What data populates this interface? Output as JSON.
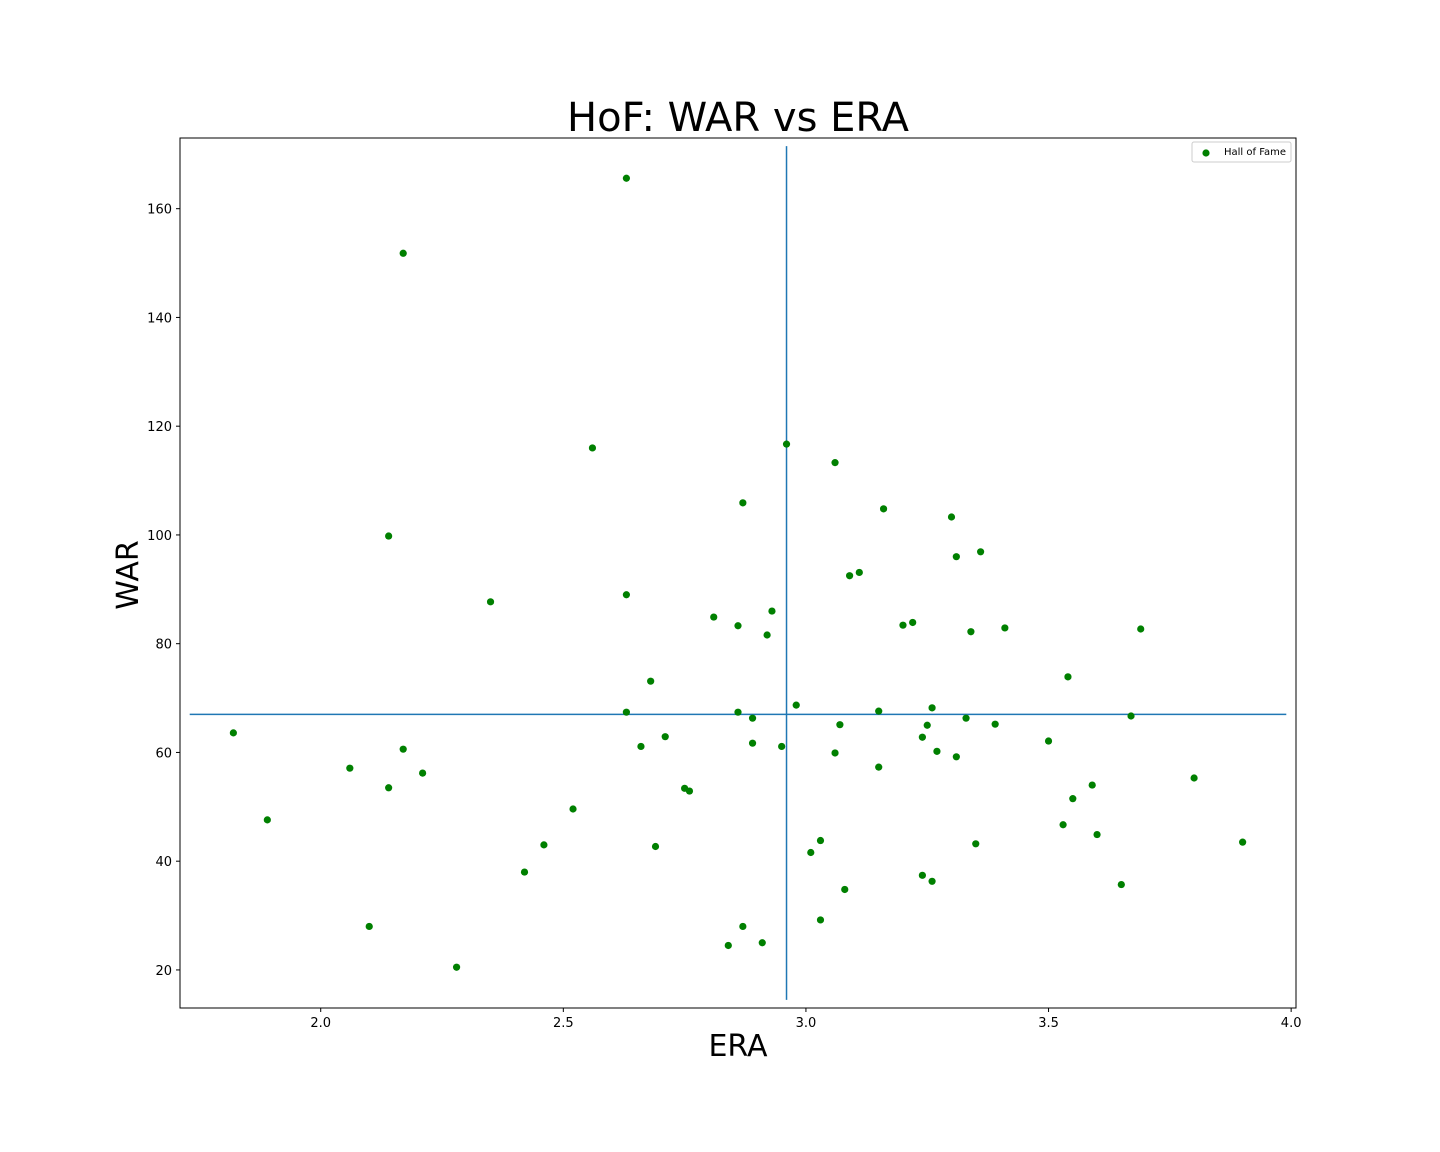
{
  "chart_data": {
    "type": "scatter",
    "title": "HoF: WAR vs ERA",
    "xlabel": "ERA",
    "ylabel": "WAR",
    "xlim": [
      1.71,
      4.01
    ],
    "ylim": [
      13.0,
      173.0
    ],
    "x_ticks": [
      "2.0",
      "2.5",
      "3.0",
      "3.5",
      "4.0"
    ],
    "y_ticks": [
      "20",
      "40",
      "60",
      "80",
      "100",
      "120",
      "140",
      "160"
    ],
    "grid": false,
    "legend": {
      "placement": "top-right",
      "entries": [
        "Hall of Fame"
      ]
    },
    "reference_lines": {
      "vertical_x": 2.96,
      "horizontal_y": 67.0
    },
    "colors": {
      "points": "#008000",
      "reference_lines": "#1f77b4"
    },
    "series": [
      {
        "name": "Hall of Fame",
        "points": [
          [
            2.63,
            165.6
          ],
          [
            2.17,
            151.8
          ],
          [
            2.56,
            116.0
          ],
          [
            2.96,
            116.7
          ],
          [
            3.06,
            113.3
          ],
          [
            2.87,
            105.9
          ],
          [
            3.16,
            104.8
          ],
          [
            3.3,
            103.3
          ],
          [
            2.14,
            99.8
          ],
          [
            3.31,
            96.0
          ],
          [
            3.36,
            96.9
          ],
          [
            3.09,
            92.5
          ],
          [
            3.11,
            93.1
          ],
          [
            2.35,
            87.7
          ],
          [
            2.63,
            89.0
          ],
          [
            2.81,
            84.9
          ],
          [
            2.86,
            83.3
          ],
          [
            2.93,
            86.0
          ],
          [
            2.92,
            81.6
          ],
          [
            3.2,
            83.4
          ],
          [
            3.22,
            83.9
          ],
          [
            3.34,
            82.2
          ],
          [
            3.41,
            82.9
          ],
          [
            3.69,
            82.7
          ],
          [
            2.68,
            73.1
          ],
          [
            3.54,
            73.9
          ],
          [
            2.63,
            67.4
          ],
          [
            2.86,
            67.4
          ],
          [
            2.98,
            68.7
          ],
          [
            3.15,
            67.6
          ],
          [
            3.26,
            68.2
          ],
          [
            3.67,
            66.7
          ],
          [
            2.89,
            66.3
          ],
          [
            3.07,
            65.1
          ],
          [
            3.25,
            65.0
          ],
          [
            3.33,
            66.3
          ],
          [
            3.39,
            65.2
          ],
          [
            1.82,
            63.6
          ],
          [
            2.66,
            61.1
          ],
          [
            2.71,
            62.9
          ],
          [
            2.89,
            61.7
          ],
          [
            2.95,
            61.1
          ],
          [
            3.06,
            59.9
          ],
          [
            3.24,
            62.8
          ],
          [
            3.27,
            60.2
          ],
          [
            3.31,
            59.2
          ],
          [
            3.5,
            62.1
          ],
          [
            2.06,
            57.1
          ],
          [
            2.17,
            60.6
          ],
          [
            2.21,
            56.2
          ],
          [
            2.14,
            53.5
          ],
          [
            3.15,
            57.3
          ],
          [
            2.75,
            53.4
          ],
          [
            2.76,
            52.9
          ],
          [
            3.59,
            54.0
          ],
          [
            3.8,
            55.3
          ],
          [
            2.52,
            49.6
          ],
          [
            3.55,
            51.5
          ],
          [
            1.89,
            47.6
          ],
          [
            3.53,
            46.7
          ],
          [
            3.6,
            44.9
          ],
          [
            2.46,
            43.0
          ],
          [
            2.69,
            42.7
          ],
          [
            3.01,
            41.6
          ],
          [
            3.03,
            43.8
          ],
          [
            3.35,
            43.2
          ],
          [
            3.9,
            43.5
          ],
          [
            2.42,
            38.0
          ],
          [
            3.08,
            34.8
          ],
          [
            3.24,
            37.4
          ],
          [
            3.26,
            36.3
          ],
          [
            3.65,
            35.7
          ],
          [
            2.1,
            28.0
          ],
          [
            2.87,
            28.0
          ],
          [
            3.03,
            29.2
          ],
          [
            2.84,
            24.5
          ],
          [
            2.91,
            25.0
          ],
          [
            2.28,
            20.5
          ]
        ]
      }
    ]
  }
}
